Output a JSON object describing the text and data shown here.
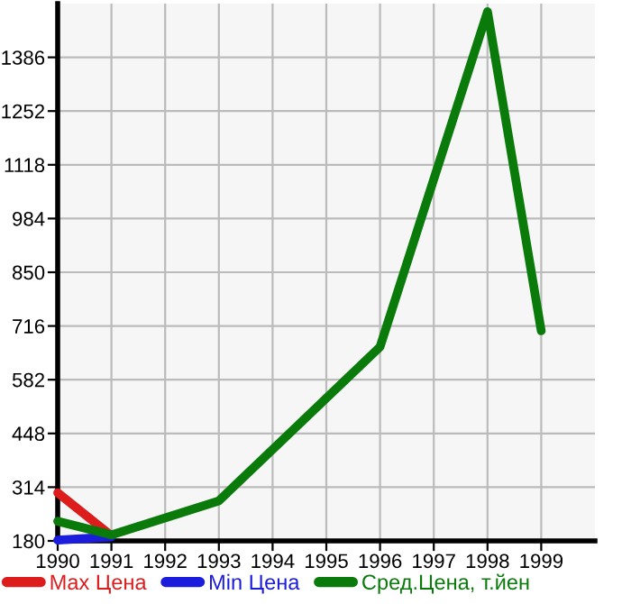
{
  "chart_data": {
    "type": "line",
    "x": [
      1990,
      1991,
      1992,
      1993,
      1994,
      1995,
      1996,
      1997,
      1998,
      1999
    ],
    "series": [
      {
        "name": "Max Цена",
        "color": "#dd1c1c",
        "values": [
          300,
          193,
          null,
          null,
          null,
          null,
          null,
          null,
          null,
          null
        ]
      },
      {
        "name": "Min Цена",
        "color": "#1c1cdd",
        "values": [
          182,
          190,
          null,
          null,
          null,
          null,
          null,
          null,
          null,
          null
        ]
      },
      {
        "name": "Сред.Цена, т.йен",
        "color": "#0a7a0a",
        "values": [
          229,
          195,
          null,
          280,
          null,
          null,
          664,
          null,
          1500,
          704
        ]
      }
    ],
    "xlim": [
      1990,
      2000
    ],
    "xticks": [
      1990,
      1991,
      1992,
      1993,
      1994,
      1995,
      1996,
      1997,
      1998,
      1999
    ],
    "ylim": [
      180,
      1520
    ],
    "yticks": [
      180,
      314,
      448,
      582,
      716,
      850,
      984,
      1118,
      1252,
      1386
    ],
    "grid": true,
    "legend": "bottom",
    "marker": "none",
    "line_style": "solid"
  }
}
